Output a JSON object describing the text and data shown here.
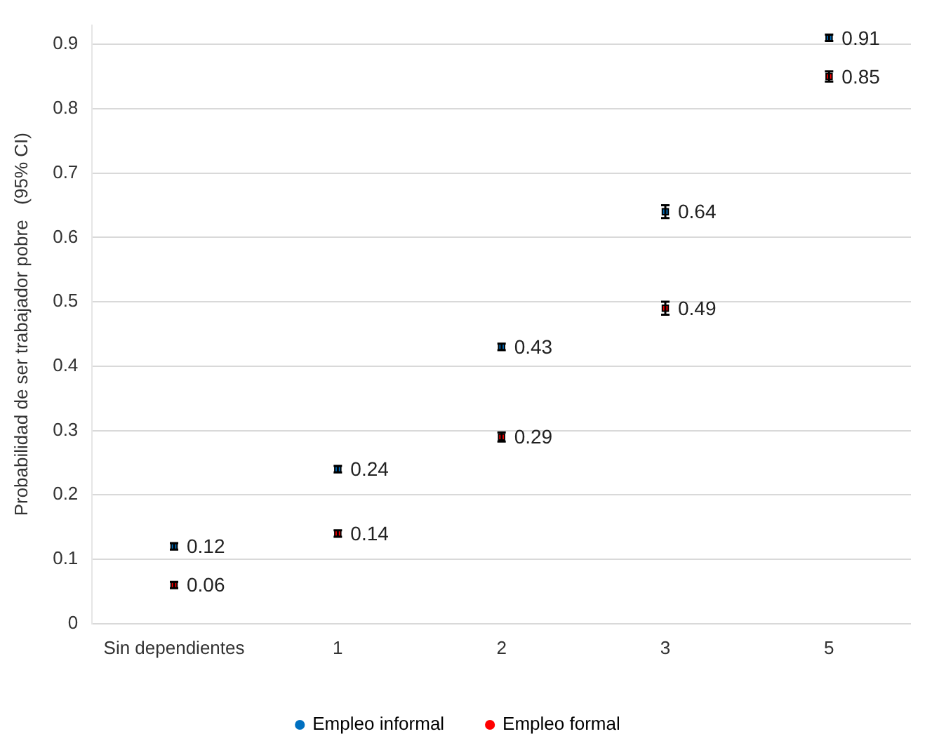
{
  "chart_data": {
    "type": "scatter",
    "ylabel": "Probabilidad de ser trabajador pobre   (95% CI)",
    "categories": [
      "Sin dependientes",
      "1",
      "2",
      "3",
      "5"
    ],
    "series": [
      {
        "name": "Empleo informal",
        "color": "#0070c0",
        "values": [
          0.12,
          0.24,
          0.43,
          0.64,
          0.91
        ],
        "errors": [
          0.005,
          0.005,
          0.005,
          0.01,
          0.005
        ]
      },
      {
        "name": "Empleo formal",
        "color": "#ff0000",
        "values": [
          0.06,
          0.14,
          0.29,
          0.49,
          0.85
        ],
        "errors": [
          0.005,
          0.005,
          0.007,
          0.01,
          0.008
        ]
      }
    ],
    "ylim": [
      0,
      0.93
    ],
    "yticks": [
      0,
      0.1,
      0.2,
      0.3,
      0.4,
      0.5,
      0.6,
      0.7,
      0.8,
      0.9
    ],
    "grid": "y",
    "legend": "bottom",
    "marker": "square",
    "data_labels": true
  }
}
